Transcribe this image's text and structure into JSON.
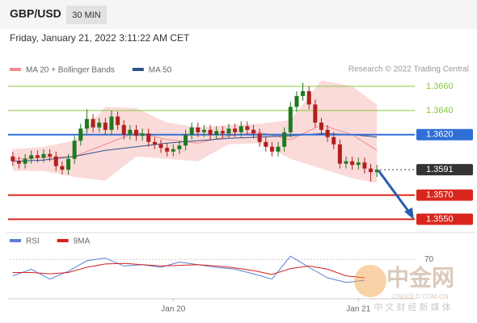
{
  "header": {
    "symbol": "GBP/USD",
    "timeframe": "30 MIN",
    "datetime": "Friday, January 21, 2022 3:11:22 AM CET"
  },
  "chart_data": [
    {
      "type": "candlestick",
      "source": "Research © 2022 Trading Central",
      "up_color": "#1f7a1f",
      "down_color": "#b0201c",
      "xlim": [
        -0.5,
        59.5
      ],
      "ylim": [
        1.3543,
        1.3678
      ],
      "open": [
        1.3602,
        1.3598,
        1.3596,
        1.36,
        1.3603,
        1.3601,
        1.3604,
        1.3602,
        1.3594,
        1.3591,
        1.36,
        1.3615,
        1.3625,
        1.3633,
        1.3626,
        1.363,
        1.3624,
        1.3635,
        1.3628,
        1.362,
        1.3624,
        1.3619,
        1.3621,
        1.3614,
        1.3612,
        1.3609,
        1.3606,
        1.3608,
        1.3611,
        1.362,
        1.3626,
        1.3622,
        1.3624,
        1.362,
        1.3623,
        1.3621,
        1.3625,
        1.3622,
        1.3627,
        1.3624,
        1.3621,
        1.3614,
        1.361,
        1.3606,
        1.361,
        1.3622,
        1.3643,
        1.3652,
        1.3656,
        1.3645,
        1.363,
        1.3624,
        1.3618,
        1.3612,
        1.3596,
        1.3598,
        1.3595,
        1.3597,
        1.3592,
        1.3589
      ],
      "high": [
        1.3606,
        1.3602,
        1.3604,
        1.3607,
        1.3607,
        1.3608,
        1.3608,
        1.3606,
        1.3598,
        1.3604,
        1.3619,
        1.3629,
        1.3641,
        1.3637,
        1.3634,
        1.3634,
        1.364,
        1.3639,
        1.3632,
        1.3628,
        1.3628,
        1.3625,
        1.3625,
        1.3618,
        1.3616,
        1.3613,
        1.3612,
        1.3615,
        1.3624,
        1.363,
        1.363,
        1.3628,
        1.3628,
        1.3627,
        1.3627,
        1.3629,
        1.3629,
        1.3631,
        1.3631,
        1.3628,
        1.3625,
        1.3618,
        1.3614,
        1.3614,
        1.3626,
        1.3647,
        1.3656,
        1.3663,
        1.366,
        1.3649,
        1.3634,
        1.3628,
        1.3622,
        1.3616,
        1.3602,
        1.3602,
        1.3601,
        1.3601,
        1.3596,
        1.3595
      ],
      "low": [
        1.3594,
        1.3592,
        1.3592,
        1.3596,
        1.3597,
        1.3597,
        1.3598,
        1.359,
        1.3587,
        1.3587,
        1.3596,
        1.3611,
        1.3621,
        1.3622,
        1.3622,
        1.362,
        1.362,
        1.3624,
        1.3616,
        1.3616,
        1.3615,
        1.3615,
        1.361,
        1.3608,
        1.3605,
        1.3602,
        1.3602,
        1.3604,
        1.3607,
        1.3616,
        1.3618,
        1.3618,
        1.3616,
        1.3616,
        1.3617,
        1.3617,
        1.3618,
        1.3618,
        1.362,
        1.3617,
        1.361,
        1.3606,
        1.3602,
        1.3602,
        1.3606,
        1.3618,
        1.3639,
        1.3648,
        1.3641,
        1.3626,
        1.362,
        1.3614,
        1.3608,
        1.3592,
        1.3592,
        1.3591,
        1.3591,
        1.3588,
        1.3581,
        1.3585
      ],
      "close": [
        1.3598,
        1.3596,
        1.36,
        1.3603,
        1.3601,
        1.3604,
        1.3602,
        1.3594,
        1.3591,
        1.36,
        1.3615,
        1.3625,
        1.3633,
        1.3626,
        1.363,
        1.3624,
        1.3635,
        1.3628,
        1.362,
        1.3624,
        1.3619,
        1.3621,
        1.3614,
        1.3612,
        1.3609,
        1.3606,
        1.3608,
        1.3611,
        1.362,
        1.3626,
        1.3622,
        1.3624,
        1.362,
        1.3623,
        1.3621,
        1.3625,
        1.3622,
        1.3627,
        1.3624,
        1.3621,
        1.3614,
        1.361,
        1.3606,
        1.361,
        1.3622,
        1.3643,
        1.3652,
        1.3656,
        1.3645,
        1.363,
        1.3624,
        1.3618,
        1.3612,
        1.3596,
        1.3598,
        1.3595,
        1.3597,
        1.3592,
        1.3589,
        1.3591
      ],
      "overlays": [
        {
          "name": "MA 20 + Bollinger Bands",
          "color": "#f08c8c",
          "band_color": "#fbdada",
          "x": [
            0,
            5,
            10,
            15,
            20,
            25,
            30,
            35,
            40,
            45,
            50,
            55,
            59
          ],
          "values": [
            1.36,
            1.3601,
            1.3602,
            1.3612,
            1.3622,
            1.3616,
            1.3613,
            1.3619,
            1.3622,
            1.3616,
            1.3628,
            1.362,
            1.3607
          ],
          "upper": [
            1.3608,
            1.361,
            1.3615,
            1.3643,
            1.3642,
            1.363,
            1.3626,
            1.3628,
            1.3629,
            1.3632,
            1.3665,
            1.366,
            1.3645
          ],
          "lower": [
            1.359,
            1.359,
            1.3585,
            1.3582,
            1.3602,
            1.36,
            1.3598,
            1.3612,
            1.3613,
            1.36,
            1.3592,
            1.3584,
            1.358
          ]
        },
        {
          "name": "MA 50",
          "color": "#2f4f8c",
          "x": [
            0,
            5,
            10,
            15,
            20,
            25,
            30,
            35,
            40,
            45,
            50,
            55,
            59
          ],
          "values": [
            1.3598,
            1.3599,
            1.3602,
            1.3607,
            1.361,
            1.3613,
            1.3615,
            1.3617,
            1.3618,
            1.3619,
            1.3621,
            1.362,
            1.3618
          ]
        }
      ],
      "levels": [
        {
          "value": 1.366,
          "label": "1.3660",
          "color": "#8cc63f",
          "boxed": false,
          "dotted": false
        },
        {
          "value": 1.364,
          "label": "1.3640",
          "color": "#8cc63f",
          "boxed": false,
          "dotted": false
        },
        {
          "value": 1.362,
          "label": "1.3620",
          "color": "#2f6fd6",
          "boxed": true,
          "dotted": false
        },
        {
          "value": 1.3591,
          "label": "1.3591",
          "color": "#333333",
          "boxed": true,
          "dotted": true
        },
        {
          "value": 1.357,
          "label": "1.3570",
          "color": "#d9261c",
          "boxed": true,
          "dotted": false
        },
        {
          "value": 1.355,
          "label": "1.3550",
          "color": "#d9261c",
          "boxed": true,
          "dotted": false
        }
      ]
    },
    {
      "type": "line",
      "xlim": [
        -0.5,
        59.5
      ],
      "ylim": [
        10,
        90
      ],
      "yticks": [
        70
      ],
      "xticks": [
        {
          "value": 26,
          "label": "Jan 20"
        },
        {
          "value": 56,
          "label": "Jan 21"
        }
      ],
      "series": [
        {
          "name": "RSI",
          "color": "#5b7fd6",
          "x": [
            0,
            3,
            6,
            9,
            12,
            15,
            18,
            21,
            24,
            27,
            30,
            33,
            36,
            39,
            42,
            45,
            48,
            51,
            54,
            57
          ],
          "values": [
            45,
            55,
            40,
            52,
            68,
            72,
            60,
            62,
            58,
            66,
            62,
            58,
            55,
            48,
            40,
            75,
            58,
            42,
            35,
            38
          ]
        },
        {
          "name": "9MA",
          "color": "#d62020",
          "x": [
            0,
            3,
            6,
            9,
            12,
            15,
            18,
            21,
            24,
            27,
            30,
            33,
            36,
            39,
            42,
            45,
            48,
            51,
            54,
            57
          ],
          "values": [
            50,
            50,
            48,
            50,
            58,
            63,
            64,
            62,
            60,
            61,
            62,
            60,
            57,
            53,
            47,
            56,
            60,
            55,
            45,
            42
          ]
        }
      ]
    }
  ],
  "watermark": {
    "logo": "中金网",
    "domain": "CNGOLD.COM.CN",
    "slogan": "中 文 财 经 新 媒 体"
  }
}
